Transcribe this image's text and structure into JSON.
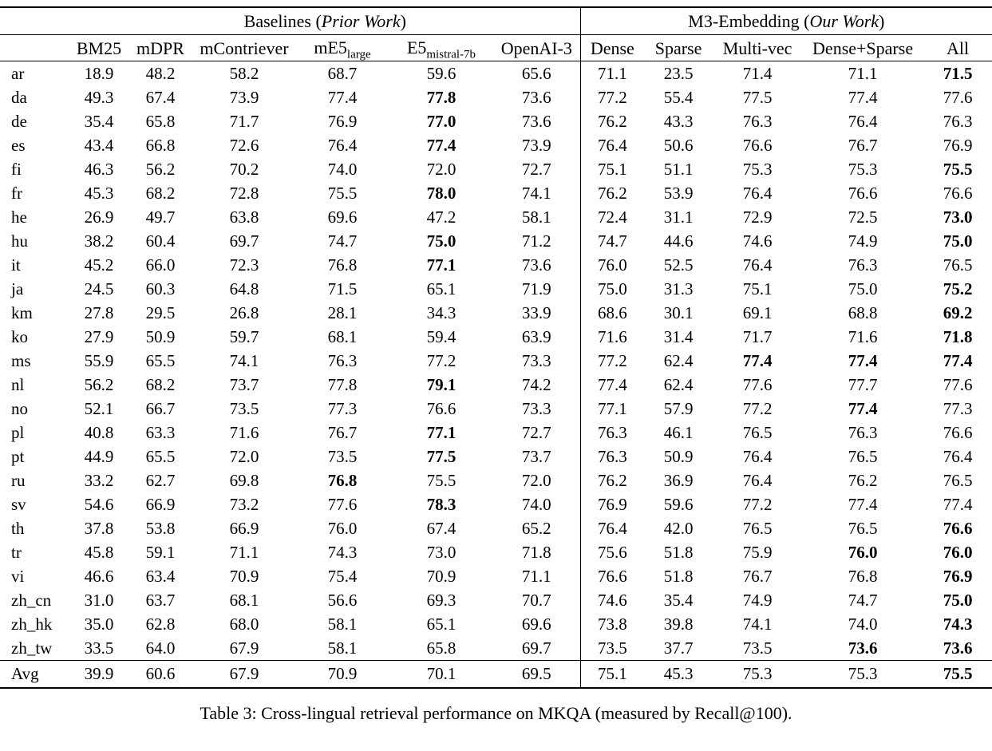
{
  "colors": {
    "text": "#000000",
    "background": "#ffffff"
  },
  "caption": "Table 3: Cross-lingual retrieval performance on MKQA (measured by Recall@100).",
  "table": {
    "groups": [
      {
        "prefix": "Baselines (",
        "italic": "Prior Work",
        "suffix": ")"
      },
      {
        "prefix": "M3-Embedding (",
        "italic": "Our Work",
        "suffix": ")"
      }
    ],
    "columns": {
      "left": [
        "BM25",
        "mDPR",
        "mContriever",
        {
          "main": "mE5",
          "sub": "large"
        },
        {
          "main": "E5",
          "sub": "mistral-7b"
        },
        "OpenAI-3"
      ],
      "right": [
        "Dense",
        "Sparse",
        "Multi-vec",
        "Dense+Sparse",
        "All"
      ]
    },
    "rows": [
      {
        "lang": "ar",
        "values": [
          "18.9",
          "48.2",
          "58.2",
          "68.7",
          "59.6",
          "65.6",
          "71.1",
          "23.5",
          "71.4",
          "71.1",
          "71.5"
        ],
        "bold": [
          10
        ]
      },
      {
        "lang": "da",
        "values": [
          "49.3",
          "67.4",
          "73.9",
          "77.4",
          "77.8",
          "73.6",
          "77.2",
          "55.4",
          "77.5",
          "77.4",
          "77.6"
        ],
        "bold": [
          4
        ]
      },
      {
        "lang": "de",
        "values": [
          "35.4",
          "65.8",
          "71.7",
          "76.9",
          "77.0",
          "73.6",
          "76.2",
          "43.3",
          "76.3",
          "76.4",
          "76.3"
        ],
        "bold": [
          4
        ]
      },
      {
        "lang": "es",
        "values": [
          "43.4",
          "66.8",
          "72.6",
          "76.4",
          "77.4",
          "73.9",
          "76.4",
          "50.6",
          "76.6",
          "76.7",
          "76.9"
        ],
        "bold": [
          4
        ]
      },
      {
        "lang": "fi",
        "values": [
          "46.3",
          "56.2",
          "70.2",
          "74.0",
          "72.0",
          "72.7",
          "75.1",
          "51.1",
          "75.3",
          "75.3",
          "75.5"
        ],
        "bold": [
          10
        ]
      },
      {
        "lang": "fr",
        "values": [
          "45.3",
          "68.2",
          "72.8",
          "75.5",
          "78.0",
          "74.1",
          "76.2",
          "53.9",
          "76.4",
          "76.6",
          "76.6"
        ],
        "bold": [
          4
        ]
      },
      {
        "lang": "he",
        "values": [
          "26.9",
          "49.7",
          "63.8",
          "69.6",
          "47.2",
          "58.1",
          "72.4",
          "31.1",
          "72.9",
          "72.5",
          "73.0"
        ],
        "bold": [
          10
        ]
      },
      {
        "lang": "hu",
        "values": [
          "38.2",
          "60.4",
          "69.7",
          "74.7",
          "75.0",
          "71.2",
          "74.7",
          "44.6",
          "74.6",
          "74.9",
          "75.0"
        ],
        "bold": [
          4,
          10
        ]
      },
      {
        "lang": "it",
        "values": [
          "45.2",
          "66.0",
          "72.3",
          "76.8",
          "77.1",
          "73.6",
          "76.0",
          "52.5",
          "76.4",
          "76.3",
          "76.5"
        ],
        "bold": [
          4
        ]
      },
      {
        "lang": "ja",
        "values": [
          "24.5",
          "60.3",
          "64.8",
          "71.5",
          "65.1",
          "71.9",
          "75.0",
          "31.3",
          "75.1",
          "75.0",
          "75.2"
        ],
        "bold": [
          10
        ]
      },
      {
        "lang": "km",
        "values": [
          "27.8",
          "29.5",
          "26.8",
          "28.1",
          "34.3",
          "33.9",
          "68.6",
          "30.1",
          "69.1",
          "68.8",
          "69.2"
        ],
        "bold": [
          10
        ]
      },
      {
        "lang": "ko",
        "values": [
          "27.9",
          "50.9",
          "59.7",
          "68.1",
          "59.4",
          "63.9",
          "71.6",
          "31.4",
          "71.7",
          "71.6",
          "71.8"
        ],
        "bold": [
          10
        ]
      },
      {
        "lang": "ms",
        "values": [
          "55.9",
          "65.5",
          "74.1",
          "76.3",
          "77.2",
          "73.3",
          "77.2",
          "62.4",
          "77.4",
          "77.4",
          "77.4"
        ],
        "bold": [
          8,
          9,
          10
        ]
      },
      {
        "lang": "nl",
        "values": [
          "56.2",
          "68.2",
          "73.7",
          "77.8",
          "79.1",
          "74.2",
          "77.4",
          "62.4",
          "77.6",
          "77.7",
          "77.6"
        ],
        "bold": [
          4
        ]
      },
      {
        "lang": "no",
        "values": [
          "52.1",
          "66.7",
          "73.5",
          "77.3",
          "76.6",
          "73.3",
          "77.1",
          "57.9",
          "77.2",
          "77.4",
          "77.3"
        ],
        "bold": [
          9
        ]
      },
      {
        "lang": "pl",
        "values": [
          "40.8",
          "63.3",
          "71.6",
          "76.7",
          "77.1",
          "72.7",
          "76.3",
          "46.1",
          "76.5",
          "76.3",
          "76.6"
        ],
        "bold": [
          4
        ]
      },
      {
        "lang": "pt",
        "values": [
          "44.9",
          "65.5",
          "72.0",
          "73.5",
          "77.5",
          "73.7",
          "76.3",
          "50.9",
          "76.4",
          "76.5",
          "76.4"
        ],
        "bold": [
          4
        ]
      },
      {
        "lang": "ru",
        "values": [
          "33.2",
          "62.7",
          "69.8",
          "76.8",
          "75.5",
          "72.0",
          "76.2",
          "36.9",
          "76.4",
          "76.2",
          "76.5"
        ],
        "bold": [
          3
        ]
      },
      {
        "lang": "sv",
        "values": [
          "54.6",
          "66.9",
          "73.2",
          "77.6",
          "78.3",
          "74.0",
          "76.9",
          "59.6",
          "77.2",
          "77.4",
          "77.4"
        ],
        "bold": [
          4
        ]
      },
      {
        "lang": "th",
        "values": [
          "37.8",
          "53.8",
          "66.9",
          "76.0",
          "67.4",
          "65.2",
          "76.4",
          "42.0",
          "76.5",
          "76.5",
          "76.6"
        ],
        "bold": [
          10
        ]
      },
      {
        "lang": "tr",
        "values": [
          "45.8",
          "59.1",
          "71.1",
          "74.3",
          "73.0",
          "71.8",
          "75.6",
          "51.8",
          "75.9",
          "76.0",
          "76.0"
        ],
        "bold": [
          9,
          10
        ]
      },
      {
        "lang": "vi",
        "values": [
          "46.6",
          "63.4",
          "70.9",
          "75.4",
          "70.9",
          "71.1",
          "76.6",
          "51.8",
          "76.7",
          "76.8",
          "76.9"
        ],
        "bold": [
          10
        ]
      },
      {
        "lang": "zh_cn",
        "values": [
          "31.0",
          "63.7",
          "68.1",
          "56.6",
          "69.3",
          "70.7",
          "74.6",
          "35.4",
          "74.9",
          "74.7",
          "75.0"
        ],
        "bold": [
          10
        ]
      },
      {
        "lang": "zh_hk",
        "values": [
          "35.0",
          "62.8",
          "68.0",
          "58.1",
          "65.1",
          "69.6",
          "73.8",
          "39.8",
          "74.1",
          "74.0",
          "74.3"
        ],
        "bold": [
          10
        ]
      },
      {
        "lang": "zh_tw",
        "values": [
          "33.5",
          "64.0",
          "67.9",
          "58.1",
          "65.8",
          "69.7",
          "73.5",
          "37.7",
          "73.5",
          "73.6",
          "73.6"
        ],
        "bold": [
          9,
          10
        ]
      },
      {
        "lang": "Avg",
        "values": [
          "39.9",
          "60.6",
          "67.9",
          "70.9",
          "70.1",
          "69.5",
          "75.1",
          "45.3",
          "75.3",
          "75.3",
          "75.5"
        ],
        "bold": [
          10
        ],
        "is_avg": true
      }
    ]
  }
}
